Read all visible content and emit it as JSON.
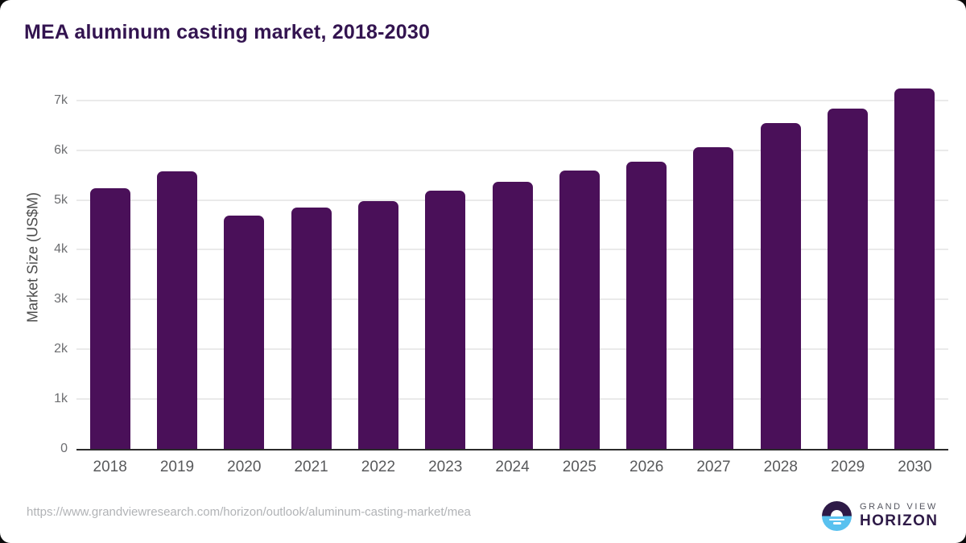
{
  "title": "MEA aluminum casting market, 2018-2030",
  "chart_data": {
    "type": "bar",
    "title": "MEA aluminum casting market, 2018-2030",
    "categories": [
      "2018",
      "2019",
      "2020",
      "2021",
      "2022",
      "2023",
      "2024",
      "2025",
      "2026",
      "2027",
      "2028",
      "2029",
      "2030"
    ],
    "values": [
      5240,
      5580,
      4690,
      4840,
      4980,
      5190,
      5370,
      5590,
      5770,
      6060,
      6550,
      6830,
      7240
    ],
    "xlabel": "",
    "ylabel": "Market Size (US$M)",
    "ylim": [
      0,
      7400
    ],
    "yticks": [
      {
        "value": 0,
        "label": "0"
      },
      {
        "value": 1000,
        "label": "1k"
      },
      {
        "value": 2000,
        "label": "2k"
      },
      {
        "value": 3000,
        "label": "3k"
      },
      {
        "value": 4000,
        "label": "4k"
      },
      {
        "value": 5000,
        "label": "5k"
      },
      {
        "value": 6000,
        "label": "6k"
      },
      {
        "value": 7000,
        "label": "7k"
      }
    ],
    "grid": "horizontal",
    "legend": "none",
    "bar_color": "#4a1059"
  },
  "footer": {
    "source_url": "https://www.grandviewresearch.com/horizon/outlook/aluminum-casting-market/mea",
    "brand": {
      "line1": "GRAND VIEW",
      "line2": "HORIZON"
    }
  },
  "colors": {
    "title": "#331450",
    "bar": "#4a1059",
    "brand_dark": "#2e1a47",
    "brand_blue": "#59c1ef"
  }
}
